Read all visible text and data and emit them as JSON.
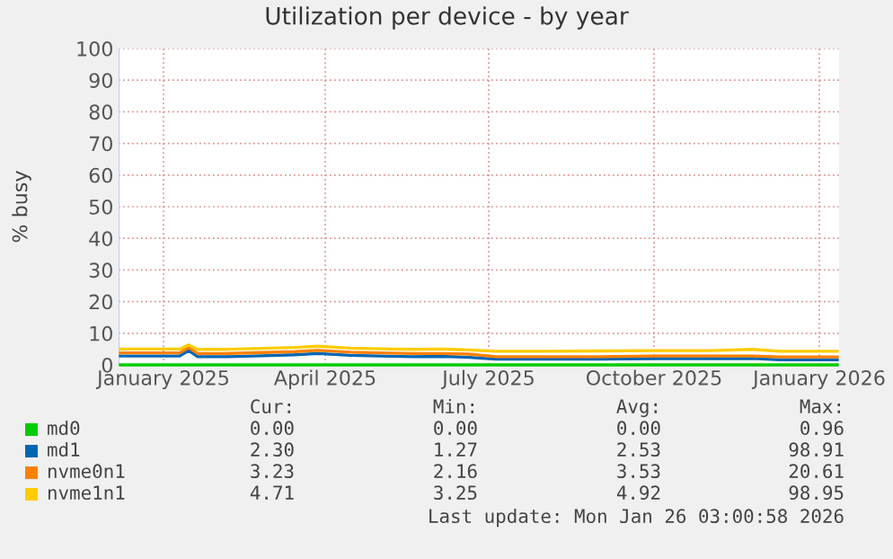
{
  "chart_data": {
    "type": "line",
    "title": "Utilization per device - by year",
    "ylabel": "% busy",
    "x": [
      "2024-12-08",
      "2024-12-25",
      "2025-01-10",
      "2025-01-15",
      "2025-01-20",
      "2025-02-05",
      "2025-02-25",
      "2025-03-15",
      "2025-03-28",
      "2025-04-15",
      "2025-05-01",
      "2025-05-20",
      "2025-06-05",
      "2025-06-20",
      "2025-07-05",
      "2025-08-01",
      "2025-09-01",
      "2025-10-01",
      "2025-11-01",
      "2025-11-25",
      "2025-12-10",
      "2025-12-25",
      "2026-01-11"
    ],
    "series": [
      {
        "name": "md0",
        "color": "#00cc00",
        "values": [
          0,
          0,
          0,
          0,
          0,
          0,
          0,
          0,
          0,
          0,
          0,
          0,
          0,
          0,
          0,
          0,
          0,
          0,
          0,
          0,
          0,
          0,
          0
        ]
      },
      {
        "name": "md1",
        "color": "#0066b3",
        "values": [
          2.8,
          2.8,
          2.8,
          4.5,
          2.6,
          2.6,
          2.9,
          3.2,
          3.6,
          3.0,
          2.8,
          2.6,
          2.7,
          2.4,
          1.8,
          1.8,
          1.8,
          2.0,
          2.0,
          2.0,
          1.6,
          1.6,
          1.6
        ]
      },
      {
        "name": "nvme0n1",
        "color": "#ff8000",
        "values": [
          3.8,
          3.8,
          3.8,
          5.5,
          3.6,
          3.6,
          3.9,
          4.2,
          4.6,
          4.0,
          3.8,
          3.6,
          3.6,
          3.4,
          2.6,
          2.6,
          2.6,
          2.8,
          2.8,
          2.8,
          2.5,
          2.5,
          2.5
        ]
      },
      {
        "name": "nvme1n1",
        "color": "#ffcc00",
        "values": [
          5.0,
          5.0,
          5.0,
          6.3,
          4.9,
          4.9,
          5.2,
          5.5,
          5.9,
          5.3,
          5.1,
          4.9,
          5.0,
          4.7,
          4.3,
          4.3,
          4.4,
          4.5,
          4.5,
          4.9,
          4.3,
          4.3,
          4.3
        ]
      }
    ],
    "xlim": [
      "2024-12-07",
      "2026-01-12"
    ],
    "xticks": [
      {
        "value": "2025-01-01",
        "label": "January 2025"
      },
      {
        "value": "2025-04-01",
        "label": "April 2025"
      },
      {
        "value": "2025-07-01",
        "label": "July 2025"
      },
      {
        "value": "2025-10-01",
        "label": "October 2025"
      },
      {
        "value": "2026-01-01",
        "label": "January 2026"
      }
    ],
    "ylim": [
      0,
      100
    ],
    "yticks": [
      0,
      10,
      20,
      30,
      40,
      50,
      60,
      70,
      80,
      90,
      100
    ],
    "grid": true,
    "legend": "bottom",
    "marker": "none",
    "line_style": "solid",
    "annotations": [
      "Cur:",
      "Min:",
      "Avg:",
      "Max:",
      "0.00",
      "0.00",
      "0.00",
      "0.96",
      "2.30",
      "1.27",
      "2.53",
      "98.91",
      "3.23",
      "2.16",
      "3.53",
      "20.61",
      "4.71",
      "3.25",
      "4.92",
      "98.95",
      "Last update: Mon Jan 26 03:00:58 2026"
    ]
  }
}
